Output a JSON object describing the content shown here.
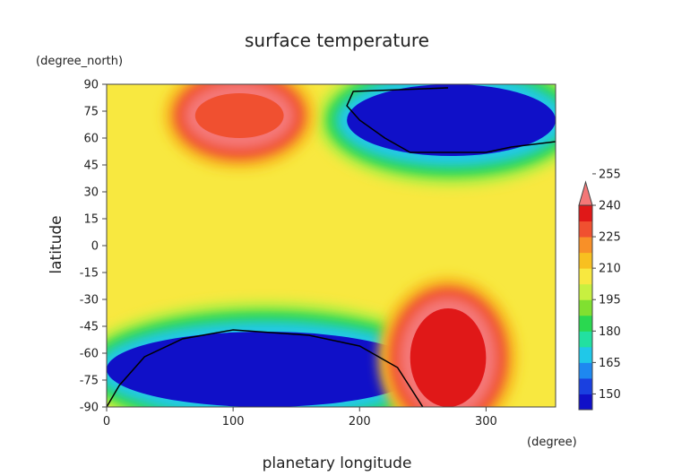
{
  "chart_data": {
    "type": "heatmap",
    "title": "surface temperature",
    "xlabel": "planetary longitude",
    "xunit": "(degree)",
    "ylabel": "latitude",
    "yunit": "(degree_north)",
    "xlim": [
      0,
      355
    ],
    "ylim": [
      -90,
      90
    ],
    "xticks": [
      0,
      100,
      200,
      300
    ],
    "yticks": [
      -90,
      -75,
      -60,
      -45,
      -30,
      -15,
      0,
      15,
      30,
      45,
      60,
      75,
      90
    ],
    "colorbar_levels": [
      150,
      165,
      180,
      195,
      210,
      225,
      240,
      255
    ],
    "colorbar_extend": "max",
    "contour_level": 150,
    "color_scale": [
      "#1010c8",
      "#1a40e0",
      "#1e88f0",
      "#20c8e8",
      "#22e0a0",
      "#2ad850",
      "#80e030",
      "#c8f040",
      "#f8e840",
      "#f8c020",
      "#f89028",
      "#f05030",
      "#e01818",
      "#f47878"
    ],
    "temperature_features": [
      {
        "description": "polar cold cap",
        "lon_range": [
          190,
          355
        ],
        "lat_range": [
          50,
          90
        ],
        "value": 145
      },
      {
        "description": "polar cold cap",
        "lon_range": [
          0,
          250
        ],
        "lat_range": [
          -90,
          -48
        ],
        "value": 145
      },
      {
        "description": "warm maximum",
        "lon_range": [
          240,
          300
        ],
        "lat_range": [
          -90,
          -35
        ],
        "value": 258
      },
      {
        "description": "warm patch",
        "lon_range": [
          70,
          140
        ],
        "lat_range": [
          60,
          85
        ],
        "value": 226
      }
    ]
  }
}
